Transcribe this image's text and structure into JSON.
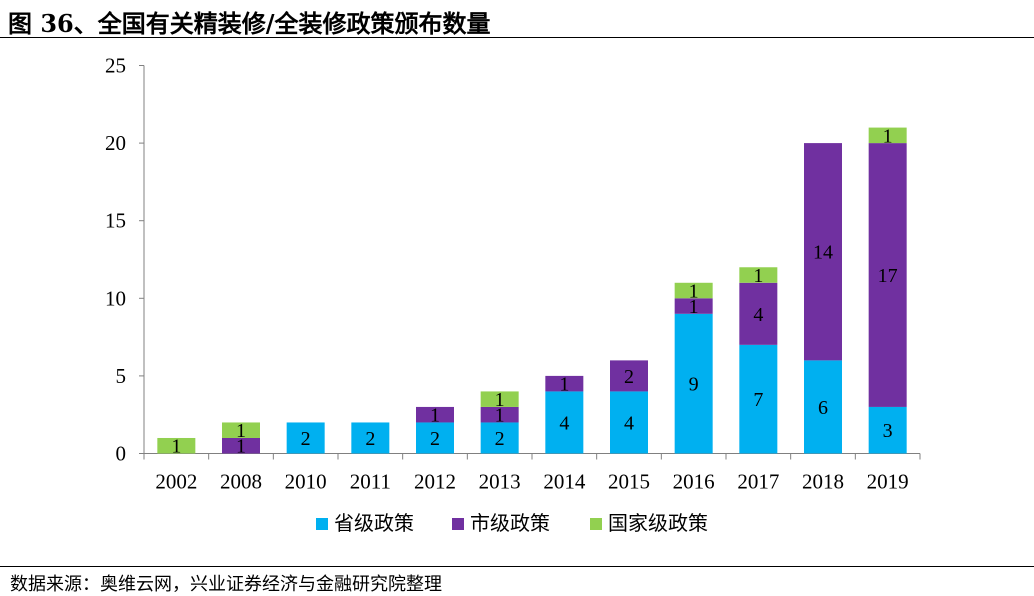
{
  "title": "图 36、全国有关精装修/全装修政策颁布数量",
  "source": "数据来源：奥维云网，兴业证券经济与金融研究院整理",
  "chart_data": {
    "type": "bar",
    "stacked": true,
    "categories": [
      "2002",
      "2008",
      "2010",
      "2011",
      "2012",
      "2013",
      "2014",
      "2015",
      "2016",
      "2017",
      "2018",
      "2019"
    ],
    "series": [
      {
        "name": "省级政策",
        "color": "#00b0f0",
        "values": [
          0,
          0,
          2,
          2,
          2,
          2,
          4,
          4,
          9,
          7,
          6,
          3
        ]
      },
      {
        "name": "市级政策",
        "color": "#7030a0",
        "values": [
          0,
          1,
          0,
          0,
          1,
          1,
          1,
          2,
          1,
          4,
          14,
          17
        ]
      },
      {
        "name": "国家级政策",
        "color": "#92d050",
        "values": [
          1,
          1,
          0,
          0,
          0,
          1,
          0,
          0,
          1,
          1,
          0,
          1
        ]
      }
    ],
    "ylim": [
      0,
      25
    ],
    "yticks": [
      0,
      5,
      10,
      15,
      20,
      25
    ],
    "grid": false,
    "legend_position": "bottom"
  }
}
